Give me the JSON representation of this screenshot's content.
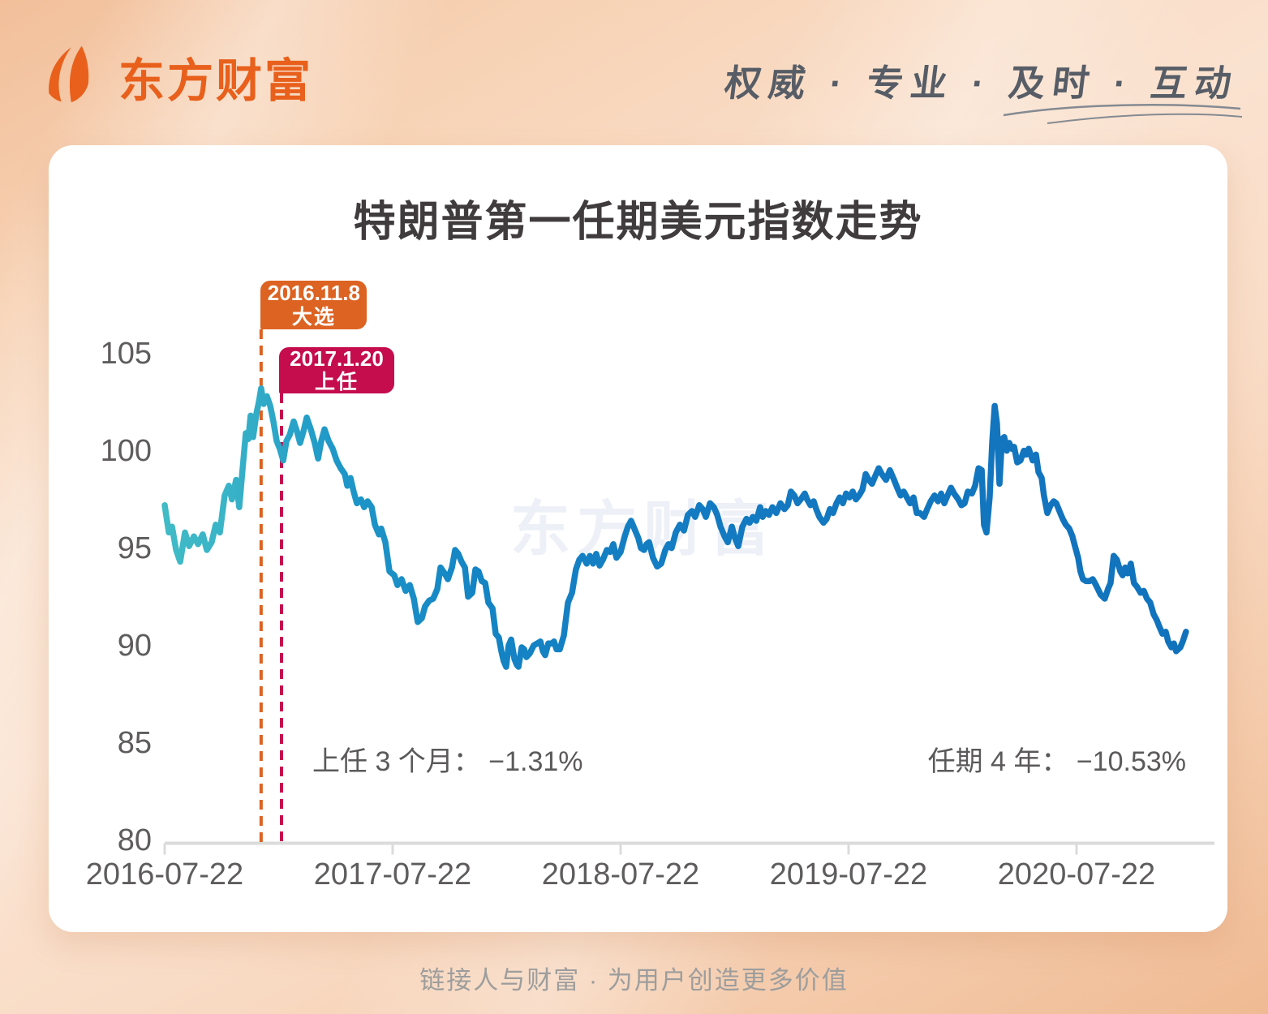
{
  "header": {
    "logo_text": "东方财富",
    "slogan": "权威 · 专业 · 及时 · 互动"
  },
  "footer": {
    "slogan": "链接人与财富 · 为用户创造更多价值"
  },
  "card": {
    "title": "特朗普第一任期美元指数走势",
    "watermark": "东方财富",
    "notes": {
      "three_month": "上任 3 个月： −1.31%",
      "four_year": "任期 4 年： −10.53%"
    }
  },
  "colors": {
    "brand_orange": "#E8601C",
    "line_start_teal": "#41BBC6",
    "line_end_blue": "#1172BC",
    "election_box": "#DC6322",
    "inauguration_box": "#C50D4E",
    "axis_gray": "#DBDBDB",
    "text_gray": "#5E5C5C"
  },
  "chart_data": {
    "type": "line",
    "title": "特朗普第一任期美元指数走势",
    "series_name": "美元指数",
    "x_unit": "years since 2016-07-22",
    "x_tick_labels": [
      "2016-07-22",
      "2017-07-22",
      "2018-07-22",
      "2019-07-22",
      "2020-07-22"
    ],
    "x_tick_positions": [
      0,
      1,
      2,
      3,
      4
    ],
    "y_ticks": [
      80,
      85,
      90,
      95,
      100,
      105
    ],
    "ylim": [
      80,
      107.5
    ],
    "xlim": [
      0,
      4.6
    ],
    "grid": false,
    "legend": "none",
    "change_3m_pct": -1.31,
    "change_4y_pct": -10.53,
    "events": [
      {
        "date": "2016.11.8",
        "label": "大选",
        "t": 0.423,
        "color": "#DC6322"
      },
      {
        "date": "2017.1.20",
        "label": "上任",
        "t": 0.5125,
        "color": "#C50D4E"
      }
    ],
    "points": [
      [
        0,
        97.3
      ],
      [
        0.018,
        95.9
      ],
      [
        0.032,
        96.2
      ],
      [
        0.05,
        95.0
      ],
      [
        0.068,
        94.4
      ],
      [
        0.089,
        95.9
      ],
      [
        0.107,
        95.2
      ],
      [
        0.128,
        95.7
      ],
      [
        0.146,
        95.3
      ],
      [
        0.167,
        95.8
      ],
      [
        0.185,
        95.0
      ],
      [
        0.206,
        95.4
      ],
      [
        0.224,
        96.3
      ],
      [
        0.242,
        95.9
      ],
      [
        0.263,
        97.8
      ],
      [
        0.281,
        98.3
      ],
      [
        0.295,
        97.6
      ],
      [
        0.313,
        98.6
      ],
      [
        0.327,
        97.2
      ],
      [
        0.342,
        99.2
      ],
      [
        0.356,
        101.0
      ],
      [
        0.367,
        100.7
      ],
      [
        0.377,
        101.9
      ],
      [
        0.388,
        100.8
      ],
      [
        0.402,
        102.0
      ],
      [
        0.413,
        102.6
      ],
      [
        0.423,
        103.3
      ],
      [
        0.434,
        102.5
      ],
      [
        0.448,
        102.9
      ],
      [
        0.463,
        102.4
      ],
      [
        0.477,
        101.6
      ],
      [
        0.491,
        100.6
      ],
      [
        0.505,
        100.2
      ],
      [
        0.52,
        99.6
      ],
      [
        0.534,
        100.6
      ],
      [
        0.548,
        100.9
      ],
      [
        0.566,
        101.6
      ],
      [
        0.58,
        101.1
      ],
      [
        0.594,
        100.5
      ],
      [
        0.609,
        101.1
      ],
      [
        0.623,
        101.8
      ],
      [
        0.641,
        101.2
      ],
      [
        0.658,
        100.5
      ],
      [
        0.673,
        99.7
      ],
      [
        0.687,
        100.6
      ],
      [
        0.701,
        101.2
      ],
      [
        0.719,
        100.6
      ],
      [
        0.737,
        100.2
      ],
      [
        0.754,
        99.6
      ],
      [
        0.772,
        99.2
      ],
      [
        0.79,
        98.9
      ],
      [
        0.801,
        98.3
      ],
      [
        0.815,
        98.7
      ],
      [
        0.829,
        98.0
      ],
      [
        0.843,
        97.4
      ],
      [
        0.861,
        97.6
      ],
      [
        0.875,
        97.2
      ],
      [
        0.89,
        97.5
      ],
      [
        0.908,
        97.2
      ],
      [
        0.922,
        96.3
      ],
      [
        0.94,
        95.8
      ],
      [
        0.95,
        96.1
      ],
      [
        0.968,
        95.4
      ],
      [
        0.986,
        93.9
      ],
      [
        1.007,
        93.7
      ],
      [
        1.021,
        93.2
      ],
      [
        1.039,
        93.5
      ],
      [
        1.057,
        92.9
      ],
      [
        1.075,
        93.2
      ],
      [
        1.093,
        92.5
      ],
      [
        1.11,
        91.3
      ],
      [
        1.128,
        91.5
      ],
      [
        1.142,
        92.1
      ],
      [
        1.16,
        92.4
      ],
      [
        1.178,
        92.5
      ],
      [
        1.196,
        93.0
      ],
      [
        1.21,
        94.1
      ],
      [
        1.228,
        93.8
      ],
      [
        1.242,
        93.5
      ],
      [
        1.26,
        94.1
      ],
      [
        1.274,
        95.0
      ],
      [
        1.288,
        94.8
      ],
      [
        1.302,
        94.4
      ],
      [
        1.317,
        94.1
      ],
      [
        1.331,
        92.6
      ],
      [
        1.349,
        92.8
      ],
      [
        1.363,
        94.0
      ],
      [
        1.377,
        93.9
      ],
      [
        1.391,
        93.4
      ],
      [
        1.406,
        93.3
      ],
      [
        1.42,
        92.3
      ],
      [
        1.438,
        92.0
      ],
      [
        1.452,
        90.7
      ],
      [
        1.466,
        90.5
      ],
      [
        1.477,
        89.8
      ],
      [
        1.487,
        89.3
      ],
      [
        1.498,
        89.0
      ],
      [
        1.509,
        90.1
      ],
      [
        1.52,
        90.4
      ],
      [
        1.534,
        89.4
      ],
      [
        1.545,
        89.1
      ],
      [
        1.552,
        89.0
      ],
      [
        1.566,
        90.0
      ],
      [
        1.577,
        89.9
      ],
      [
        1.587,
        89.5
      ],
      [
        1.602,
        89.7
      ],
      [
        1.619,
        90.1
      ],
      [
        1.634,
        90.2
      ],
      [
        1.648,
        90.3
      ],
      [
        1.659,
        89.8
      ],
      [
        1.669,
        89.6
      ],
      [
        1.683,
        90.2
      ],
      [
        1.698,
        90.2
      ],
      [
        1.708,
        90.3
      ],
      [
        1.719,
        89.9
      ],
      [
        1.733,
        89.9
      ],
      [
        1.751,
        90.6
      ],
      [
        1.769,
        92.3
      ],
      [
        1.787,
        92.8
      ],
      [
        1.804,
        94.0
      ],
      [
        1.819,
        94.5
      ],
      [
        1.833,
        94.7
      ],
      [
        1.851,
        94.3
      ],
      [
        1.865,
        94.7
      ],
      [
        1.879,
        94.3
      ],
      [
        1.893,
        94.8
      ],
      [
        1.908,
        94.2
      ],
      [
        1.922,
        94.5
      ],
      [
        1.94,
        95.0
      ],
      [
        1.954,
        94.9
      ],
      [
        1.968,
        95.3
      ],
      [
        1.982,
        94.6
      ],
      [
        2.0,
        94.9
      ],
      [
        2.018,
        95.7
      ],
      [
        2.032,
        96.2
      ],
      [
        2.046,
        96.5
      ],
      [
        2.06,
        96.1
      ],
      [
        2.078,
        95.6
      ],
      [
        2.089,
        95.1
      ],
      [
        2.103,
        95.0
      ],
      [
        2.114,
        95.3
      ],
      [
        2.125,
        95.4
      ],
      [
        2.142,
        94.6
      ],
      [
        2.16,
        94.15
      ],
      [
        2.178,
        94.3
      ],
      [
        2.196,
        95.0
      ],
      [
        2.21,
        95.3
      ],
      [
        2.224,
        95.1
      ],
      [
        2.242,
        95.9
      ],
      [
        2.26,
        96.3
      ],
      [
        2.278,
        96.0
      ],
      [
        2.295,
        96.8
      ],
      [
        2.313,
        97.0
      ],
      [
        2.327,
        96.7
      ],
      [
        2.345,
        97.3
      ],
      [
        2.36,
        97.1
      ],
      [
        2.374,
        96.7
      ],
      [
        2.392,
        97.4
      ],
      [
        2.409,
        97.2
      ],
      [
        2.424,
        96.8
      ],
      [
        2.438,
        96.2
      ],
      [
        2.456,
        95.7
      ],
      [
        2.47,
        95.4
      ],
      [
        2.488,
        96.2
      ],
      [
        2.502,
        95.6
      ],
      [
        2.516,
        95.2
      ],
      [
        2.534,
        96.2
      ],
      [
        2.552,
        96.6
      ],
      [
        2.566,
        96.4
      ],
      [
        2.58,
        96.7
      ],
      [
        2.595,
        96.5
      ],
      [
        2.612,
        97.2
      ],
      [
        2.623,
        96.7
      ],
      [
        2.637,
        97.0
      ],
      [
        2.651,
        96.8
      ],
      [
        2.666,
        97.2
      ],
      [
        2.683,
        96.9
      ],
      [
        2.701,
        97.4
      ],
      [
        2.719,
        97.1
      ],
      [
        2.733,
        97.3
      ],
      [
        2.747,
        98.0
      ],
      [
        2.762,
        97.8
      ],
      [
        2.776,
        97.4
      ],
      [
        2.79,
        97.6
      ],
      [
        2.808,
        97.9
      ],
      [
        2.818,
        97.6
      ],
      [
        2.833,
        97.3
      ],
      [
        2.847,
        97.5
      ],
      [
        2.858,
        97.1
      ],
      [
        2.872,
        96.7
      ],
      [
        2.89,
        96.4
      ],
      [
        2.904,
        96.6
      ],
      [
        2.918,
        97.1
      ],
      [
        2.932,
        96.9
      ],
      [
        2.947,
        97.4
      ],
      [
        2.961,
        97.7
      ],
      [
        2.975,
        97.4
      ],
      [
        2.989,
        97.9
      ],
      [
        3.004,
        97.7
      ],
      [
        3.018,
        98.0
      ],
      [
        3.032,
        97.6
      ],
      [
        3.046,
        97.8
      ],
      [
        3.061,
        98.1
      ],
      [
        3.075,
        98.9
      ],
      [
        3.089,
        98.6
      ],
      [
        3.103,
        98.4
      ],
      [
        3.117,
        98.8
      ],
      [
        3.132,
        99.2
      ],
      [
        3.146,
        98.9
      ],
      [
        3.164,
        98.6
      ],
      [
        3.181,
        99.1
      ],
      [
        3.196,
        98.7
      ],
      [
        3.213,
        98.2
      ],
      [
        3.228,
        97.8
      ],
      [
        3.242,
        98.0
      ],
      [
        3.256,
        97.7
      ],
      [
        3.27,
        97.4
      ],
      [
        3.285,
        97.7
      ],
      [
        3.299,
        96.9
      ],
      [
        3.313,
        96.9
      ],
      [
        3.331,
        96.7
      ],
      [
        3.345,
        97.1
      ],
      [
        3.36,
        97.5
      ],
      [
        3.377,
        97.8
      ],
      [
        3.392,
        97.5
      ],
      [
        3.406,
        97.9
      ],
      [
        3.42,
        97.4
      ],
      [
        3.434,
        97.8
      ],
      [
        3.449,
        98.2
      ],
      [
        3.463,
        97.9
      ],
      [
        3.481,
        97.6
      ],
      [
        3.495,
        97.3
      ],
      [
        3.509,
        97.4
      ],
      [
        3.523,
        98.0
      ],
      [
        3.541,
        97.9
      ],
      [
        3.555,
        98.3
      ],
      [
        3.57,
        99.2
      ],
      [
        3.584,
        99.1
      ],
      [
        3.594,
        96.3
      ],
      [
        3.605,
        95.9
      ],
      [
        3.619,
        97.7
      ],
      [
        3.63,
        100.5
      ],
      [
        3.641,
        102.4
      ],
      [
        3.651,
        101.5
      ],
      [
        3.662,
        98.4
      ],
      [
        3.673,
        100.7
      ],
      [
        3.683,
        100.8
      ],
      [
        3.694,
        100.1
      ],
      [
        3.705,
        100.5
      ],
      [
        3.715,
        100.2
      ],
      [
        3.726,
        100.3
      ],
      [
        3.74,
        99.5
      ],
      [
        3.754,
        99.6
      ],
      [
        3.769,
        100.1
      ],
      [
        3.779,
        99.9
      ],
      [
        3.79,
        100.2
      ],
      [
        3.808,
        99.6
      ],
      [
        3.822,
        99.9
      ],
      [
        3.833,
        99.0
      ],
      [
        3.847,
        98.7
      ],
      [
        3.857,
        97.8
      ],
      [
        3.872,
        96.9
      ],
      [
        3.886,
        97.3
      ],
      [
        3.9,
        97.5
      ],
      [
        3.911,
        97.4
      ],
      [
        3.925,
        97.0
      ],
      [
        3.939,
        96.6
      ],
      [
        3.953,
        96.3
      ],
      [
        3.968,
        96.1
      ],
      [
        3.982,
        95.7
      ],
      [
        3.993,
        95.2
      ],
      [
        4.007,
        94.6
      ],
      [
        4.017,
        93.9
      ],
      [
        4.028,
        93.5
      ],
      [
        4.042,
        93.4
      ],
      [
        4.057,
        93.4
      ],
      [
        4.071,
        93.5
      ],
      [
        4.085,
        93.2
      ],
      [
        4.106,
        92.7
      ],
      [
        4.124,
        92.5
      ],
      [
        4.138,
        93.0
      ],
      [
        4.149,
        93.3
      ],
      [
        4.163,
        94.7
      ],
      [
        4.177,
        94.5
      ],
      [
        4.192,
        93.9
      ],
      [
        4.202,
        93.7
      ],
      [
        4.213,
        94.1
      ],
      [
        4.224,
        93.8
      ],
      [
        4.238,
        94.3
      ],
      [
        4.252,
        93.3
      ],
      [
        4.266,
        93.1
      ],
      [
        4.281,
        92.8
      ],
      [
        4.295,
        92.9
      ],
      [
        4.309,
        92.5
      ],
      [
        4.323,
        92.3
      ],
      [
        4.338,
        91.7
      ],
      [
        4.352,
        91.4
      ],
      [
        4.362,
        91.1
      ],
      [
        4.377,
        90.7
      ],
      [
        4.391,
        90.8
      ],
      [
        4.402,
        90.3
      ],
      [
        4.416,
        90.0
      ],
      [
        4.427,
        90.2
      ],
      [
        4.437,
        89.8
      ],
      [
        4.455,
        90.0
      ],
      [
        4.466,
        90.3
      ],
      [
        4.48,
        90.8
      ]
    ]
  }
}
